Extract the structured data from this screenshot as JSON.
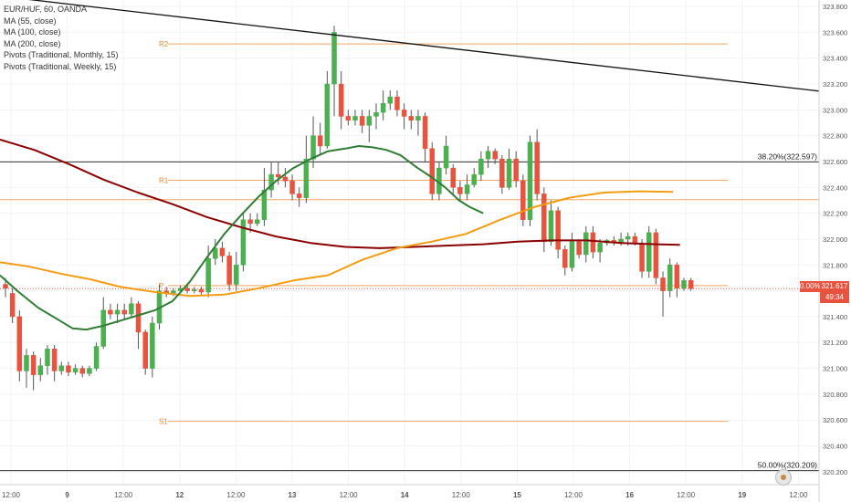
{
  "legend": {
    "symbol": "EUR/HUF, 60, OANDA",
    "ma55": "MA (55, close)",
    "ma100": "MA (100, close)",
    "ma200": "MA (200, close)",
    "pivots_monthly": "Pivots (Traditional, Monthly, 15)",
    "pivots_weekly": "Pivots (Traditional, Weekly, 15)"
  },
  "price_tag": {
    "pct": "0.00%",
    "price": "321.617",
    "countdown": "49:34"
  },
  "colors": {
    "up": "#4caf50",
    "down": "#e8533f",
    "ma55": "#2e7d32",
    "ma100": "#f39c12",
    "ma200": "#8b0000",
    "pivot": "#f4a460",
    "fib": "#333333",
    "trend": "#111111"
  },
  "chart_data": {
    "type": "candlestick",
    "ylim": [
      320.1,
      323.85
    ],
    "y_ticks": [
      "323.800",
      "323.600",
      "323.400",
      "323.200",
      "323.000",
      "322.800",
      "322.600",
      "322.400",
      "322.200",
      "322.000",
      "321.800",
      "321.600",
      "321.400",
      "321.200",
      "321.000",
      "320.800",
      "320.600",
      "320.400",
      "320.200"
    ],
    "x_ticks": [
      "12:00",
      "9",
      "12:00",
      "12",
      "12:00",
      "13",
      "12:00",
      "14",
      "12:00",
      "15",
      "12:00",
      "16",
      "12:00",
      "19",
      "12:00"
    ],
    "fib_levels": [
      {
        "label": "38.20%(322.597)",
        "value": 322.597
      },
      {
        "label": "50.00%(320.209)",
        "value": 320.209
      }
    ],
    "pivot_levels": [
      {
        "label": "R2",
        "value": 323.51
      },
      {
        "label": "R1",
        "value": 322.455
      },
      {
        "label": "P",
        "value": 321.64
      },
      {
        "label": "S1",
        "value": 320.59
      }
    ],
    "weekly_level": 322.305,
    "trendline": {
      "start": 323.88,
      "end": 323.145
    },
    "last_price": 321.617,
    "candles": [
      [
        321.65,
        321.62,
        321.7,
        321.55
      ],
      [
        321.58,
        321.4,
        321.62,
        321.35
      ],
      [
        321.4,
        320.98,
        321.45,
        320.9
      ],
      [
        320.98,
        321.1,
        321.15,
        320.85
      ],
      [
        321.1,
        320.95,
        321.13,
        320.83
      ],
      [
        320.95,
        321.02,
        321.08,
        320.9
      ],
      [
        321.02,
        321.15,
        321.18,
        320.95
      ],
      [
        321.15,
        320.98,
        321.18,
        320.9
      ],
      [
        320.98,
        321.02,
        321.05,
        320.95
      ],
      [
        321.02,
        320.97,
        321.05,
        320.94
      ],
      [
        320.97,
        321.0,
        321.03,
        320.95
      ],
      [
        321.0,
        320.96,
        321.02,
        320.93
      ],
      [
        320.96,
        321.0,
        321.02,
        320.94
      ],
      [
        321.0,
        321.17,
        321.2,
        320.98
      ],
      [
        321.17,
        321.45,
        321.55,
        321.15
      ],
      [
        321.45,
        321.42,
        321.5,
        321.38
      ],
      [
        321.42,
        321.45,
        321.5,
        321.35
      ],
      [
        321.45,
        321.42,
        321.5,
        321.38
      ],
      [
        321.42,
        321.5,
        321.55,
        321.4
      ],
      [
        321.5,
        321.28,
        321.52,
        321.15
      ],
      [
        321.28,
        321.0,
        321.3,
        320.95
      ],
      [
        321.0,
        321.35,
        321.4,
        320.93
      ],
      [
        321.35,
        321.6,
        321.65,
        321.3
      ],
      [
        321.6,
        321.58,
        321.63,
        321.55
      ],
      [
        321.58,
        321.6,
        321.62,
        321.56
      ],
      [
        321.6,
        321.62,
        321.64,
        321.58
      ],
      [
        321.62,
        321.6,
        321.64,
        321.58
      ],
      [
        321.6,
        321.61,
        321.63,
        321.58
      ],
      [
        321.61,
        321.59,
        321.63,
        321.57
      ],
      [
        321.59,
        321.85,
        321.95,
        321.55
      ],
      [
        321.85,
        321.93,
        322.0,
        321.8
      ],
      [
        321.93,
        321.87,
        321.98,
        321.82
      ],
      [
        321.87,
        321.65,
        321.9,
        321.6
      ],
      [
        321.65,
        321.8,
        321.9,
        321.6
      ],
      [
        321.8,
        322.15,
        322.2,
        321.75
      ],
      [
        322.15,
        322.12,
        322.2,
        322.05
      ],
      [
        322.12,
        322.15,
        322.2,
        322.1
      ],
      [
        322.15,
        322.38,
        322.55,
        322.1
      ],
      [
        322.38,
        322.5,
        322.6,
        322.32
      ],
      [
        322.5,
        322.48,
        322.6,
        322.42
      ],
      [
        322.48,
        322.45,
        322.55,
        322.4
      ],
      [
        322.45,
        322.35,
        322.5,
        322.3
      ],
      [
        322.35,
        322.32,
        322.4,
        322.25
      ],
      [
        322.32,
        322.62,
        322.8,
        322.28
      ],
      [
        322.62,
        322.8,
        322.95,
        322.55
      ],
      [
        322.8,
        322.72,
        322.9,
        322.65
      ],
      [
        322.72,
        323.2,
        323.3,
        322.7
      ],
      [
        323.2,
        323.6,
        323.65,
        322.95
      ],
      [
        323.2,
        322.95,
        323.3,
        322.85
      ],
      [
        322.95,
        322.92,
        323.0,
        322.88
      ],
      [
        322.92,
        322.95,
        323.0,
        322.88
      ],
      [
        322.95,
        322.88,
        323.0,
        322.82
      ],
      [
        322.88,
        322.95,
        323.0,
        322.75
      ],
      [
        322.95,
        322.98,
        323.05,
        322.85
      ],
      [
        322.98,
        323.05,
        323.15,
        322.92
      ],
      [
        323.05,
        323.1,
        323.15,
        323.0
      ],
      [
        323.1,
        323.0,
        323.15,
        322.95
      ],
      [
        323.0,
        322.95,
        323.05,
        322.85
      ],
      [
        322.95,
        322.92,
        323.0,
        322.85
      ],
      [
        322.92,
        322.95,
        323.0,
        322.8
      ],
      [
        322.95,
        322.7,
        322.98,
        322.6
      ],
      [
        322.7,
        322.35,
        322.75,
        322.3
      ],
      [
        322.35,
        322.55,
        322.6,
        322.3
      ],
      [
        322.55,
        322.72,
        322.8,
        322.5
      ],
      [
        322.55,
        322.4,
        322.58,
        322.35
      ],
      [
        322.4,
        322.35,
        322.45,
        322.3
      ],
      [
        322.35,
        322.42,
        322.5,
        322.3
      ],
      [
        322.42,
        322.5,
        322.55,
        322.4
      ],
      [
        322.5,
        322.62,
        322.68,
        322.45
      ],
      [
        322.62,
        322.68,
        322.72,
        322.55
      ],
      [
        322.68,
        322.62,
        322.7,
        322.58
      ],
      [
        322.62,
        322.4,
        322.65,
        322.35
      ],
      [
        322.4,
        322.62,
        322.7,
        322.38
      ],
      [
        322.62,
        322.45,
        322.68,
        322.4
      ],
      [
        322.45,
        322.15,
        322.5,
        322.1
      ],
      [
        322.15,
        322.75,
        322.8,
        322.1
      ],
      [
        322.75,
        322.35,
        322.85,
        322.3
      ],
      [
        322.35,
        321.98,
        322.4,
        321.9
      ],
      [
        321.98,
        322.22,
        322.3,
        321.95
      ],
      [
        322.22,
        321.92,
        322.25,
        321.85
      ],
      [
        321.92,
        321.78,
        321.95,
        321.72
      ],
      [
        321.78,
        321.98,
        322.05,
        321.75
      ],
      [
        321.98,
        321.88,
        322.0,
        321.85
      ],
      [
        321.88,
        322.05,
        322.1,
        321.82
      ],
      [
        322.05,
        321.9,
        322.1,
        321.85
      ],
      [
        321.9,
        321.97,
        322.0,
        321.82
      ],
      [
        321.97,
        321.99,
        322.0,
        321.95
      ],
      [
        321.99,
        321.97,
        322.02,
        321.95
      ],
      [
        321.97,
        322.0,
        322.05,
        321.95
      ],
      [
        322.0,
        322.02,
        322.05,
        321.95
      ],
      [
        322.02,
        321.97,
        322.05,
        321.95
      ],
      [
        321.97,
        321.75,
        322.0,
        321.7
      ],
      [
        321.75,
        322.05,
        322.1,
        321.7
      ],
      [
        322.05,
        321.7,
        322.08,
        321.65
      ],
      [
        321.7,
        321.6,
        321.75,
        321.4
      ],
      [
        321.6,
        321.8,
        321.85,
        321.55
      ],
      [
        321.8,
        321.62,
        321.82,
        321.55
      ],
      [
        321.62,
        321.68,
        321.7,
        321.6
      ],
      [
        321.68,
        321.617,
        321.7,
        321.6
      ]
    ],
    "ma55": [
      [
        0,
        321.72
      ],
      [
        5,
        321.6
      ],
      [
        11,
        321.47
      ],
      [
        16,
        321.39
      ],
      [
        21,
        321.31
      ],
      [
        25,
        321.3
      ],
      [
        30,
        321.33
      ],
      [
        35,
        321.37
      ],
      [
        40,
        321.41
      ],
      [
        45,
        321.45
      ],
      [
        50,
        321.52
      ],
      [
        55,
        321.67
      ],
      [
        60,
        321.86
      ],
      [
        65,
        322.04
      ],
      [
        70,
        322.19
      ],
      [
        75,
        322.33
      ],
      [
        80,
        322.45
      ],
      [
        85,
        322.55
      ],
      [
        90,
        322.62
      ],
      [
        95,
        322.68
      ],
      [
        100,
        322.7
      ],
      [
        104,
        322.72
      ],
      [
        108,
        322.71
      ],
      [
        112,
        322.69
      ],
      [
        116,
        322.65
      ],
      [
        121,
        322.55
      ],
      [
        125,
        322.48
      ],
      [
        129,
        322.4
      ],
      [
        133,
        322.3
      ],
      [
        136,
        322.25
      ],
      [
        140,
        322.2
      ]
    ],
    "ma100": [
      [
        0,
        321.82
      ],
      [
        8,
        321.79
      ],
      [
        18,
        321.73
      ],
      [
        26,
        321.69
      ],
      [
        35,
        321.63
      ],
      [
        45,
        321.59
      ],
      [
        55,
        321.56
      ],
      [
        65,
        321.57
      ],
      [
        75,
        321.62
      ],
      [
        85,
        321.68
      ],
      [
        95,
        321.72
      ],
      [
        105,
        321.84
      ],
      [
        115,
        321.93
      ],
      [
        125,
        321.98
      ],
      [
        135,
        322.04
      ],
      [
        145,
        322.15
      ],
      [
        155,
        322.25
      ],
      [
        165,
        322.32
      ],
      [
        175,
        322.36
      ],
      [
        185,
        322.37
      ],
      [
        195,
        322.365
      ]
    ],
    "ma200": [
      [
        0,
        322.77
      ],
      [
        10,
        322.69
      ],
      [
        20,
        322.58
      ],
      [
        30,
        322.46
      ],
      [
        40,
        322.36
      ],
      [
        50,
        322.27
      ],
      [
        60,
        322.17
      ],
      [
        70,
        322.09
      ],
      [
        80,
        322.02
      ],
      [
        90,
        321.97
      ],
      [
        100,
        321.94
      ],
      [
        110,
        321.93
      ],
      [
        120,
        321.94
      ],
      [
        130,
        321.95
      ],
      [
        140,
        321.96
      ],
      [
        150,
        321.98
      ],
      [
        160,
        321.99
      ],
      [
        170,
        321.99
      ],
      [
        180,
        321.97
      ],
      [
        190,
        321.96
      ],
      [
        197,
        321.955
      ]
    ]
  }
}
